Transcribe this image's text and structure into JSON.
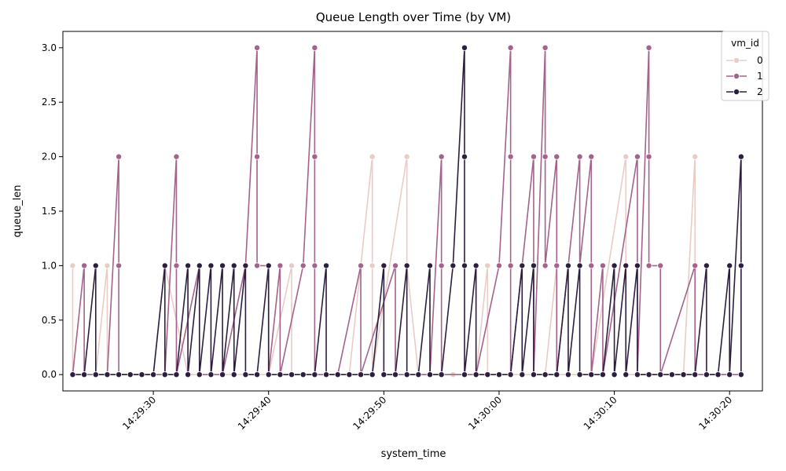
{
  "chart_data": {
    "type": "line",
    "title": "Queue Length over Time (by VM)",
    "xlabel": "system_time",
    "ylabel": "queue_len",
    "x_range": [
      "14:29:23",
      "14:30:22"
    ],
    "ylim": [
      -0.15,
      3.15
    ],
    "x_ticks": [
      "14:29:30",
      "14:29:40",
      "14:29:50",
      "14:30:00",
      "14:30:10",
      "14:30:20"
    ],
    "y_ticks": [
      "0.0",
      "0.5",
      "1.0",
      "1.5",
      "2.0",
      "2.5",
      "3.0"
    ],
    "grid": false,
    "legend": {
      "title": "vm_id",
      "placement": "top-right"
    },
    "series": [
      {
        "name": "0",
        "color": "#e8cdc6",
        "points": [
          [
            "14:29:23",
            1
          ],
          [
            "14:29:23",
            0
          ],
          [
            "14:29:25",
            0
          ],
          [
            "14:29:26",
            1
          ],
          [
            "14:29:26",
            0
          ],
          [
            "14:29:28",
            0
          ],
          [
            "14:29:30",
            0
          ],
          [
            "14:29:31",
            1
          ],
          [
            "14:29:33",
            0
          ],
          [
            "14:29:35",
            0
          ],
          [
            "14:29:38",
            0
          ],
          [
            "14:29:40",
            0
          ],
          [
            "14:29:42",
            1
          ],
          [
            "14:29:42",
            0
          ],
          [
            "14:29:45",
            0
          ],
          [
            "14:29:47",
            0
          ],
          [
            "14:29:49",
            2
          ],
          [
            "14:29:49",
            1
          ],
          [
            "14:29:49",
            0
          ],
          [
            "14:29:52",
            2
          ],
          [
            "14:29:52",
            1
          ],
          [
            "14:29:53",
            0
          ],
          [
            "14:29:56",
            0
          ],
          [
            "14:29:58",
            0
          ],
          [
            "14:29:59",
            1
          ],
          [
            "14:29:59",
            0
          ],
          [
            "14:30:02",
            0
          ],
          [
            "14:30:04",
            0
          ],
          [
            "14:30:05",
            1
          ],
          [
            "14:30:05",
            0
          ],
          [
            "14:30:08",
            0
          ],
          [
            "14:30:11",
            2
          ],
          [
            "14:30:11",
            1
          ],
          [
            "14:30:11",
            0
          ],
          [
            "14:30:14",
            0
          ],
          [
            "14:30:16",
            0
          ],
          [
            "14:30:17",
            2
          ],
          [
            "14:30:17",
            1
          ],
          [
            "14:30:17",
            0
          ],
          [
            "14:30:19",
            0
          ],
          [
            "14:30:21",
            0
          ]
        ]
      },
      {
        "name": "1",
        "color": "#a3638b",
        "points": [
          [
            "14:29:23",
            0
          ],
          [
            "14:29:24",
            1
          ],
          [
            "14:29:24",
            0
          ],
          [
            "14:29:26",
            0
          ],
          [
            "14:29:27",
            2
          ],
          [
            "14:29:27",
            1
          ],
          [
            "14:29:27",
            0
          ],
          [
            "14:29:29",
            0
          ],
          [
            "14:29:31",
            0
          ],
          [
            "14:29:32",
            2
          ],
          [
            "14:29:32",
            1
          ],
          [
            "14:29:32",
            0
          ],
          [
            "14:29:34",
            1
          ],
          [
            "14:29:34",
            0
          ],
          [
            "14:29:36",
            0
          ],
          [
            "14:29:38",
            1
          ],
          [
            "14:29:39",
            3
          ],
          [
            "14:29:39",
            2
          ],
          [
            "14:29:39",
            1
          ],
          [
            "14:29:40",
            1
          ],
          [
            "14:29:40",
            0
          ],
          [
            "14:29:41",
            1
          ],
          [
            "14:29:41",
            0
          ],
          [
            "14:29:43",
            1
          ],
          [
            "14:29:44",
            3
          ],
          [
            "14:29:44",
            2
          ],
          [
            "14:29:44",
            1
          ],
          [
            "14:29:44",
            0
          ],
          [
            "14:29:46",
            0
          ],
          [
            "14:29:48",
            1
          ],
          [
            "14:29:48",
            0
          ],
          [
            "14:29:51",
            1
          ],
          [
            "14:29:51",
            0
          ],
          [
            "14:29:54",
            0
          ],
          [
            "14:29:55",
            2
          ],
          [
            "14:29:55",
            1
          ],
          [
            "14:29:55",
            0
          ],
          [
            "14:29:58",
            0
          ],
          [
            "14:30:00",
            1
          ],
          [
            "14:30:01",
            3
          ],
          [
            "14:30:01",
            2
          ],
          [
            "14:30:01",
            1
          ],
          [
            "14:30:01",
            0
          ],
          [
            "14:30:03",
            2
          ],
          [
            "14:30:03",
            1
          ],
          [
            "14:30:03",
            0
          ],
          [
            "14:30:04",
            3
          ],
          [
            "14:30:04",
            2
          ],
          [
            "14:30:04",
            1
          ],
          [
            "14:30:05",
            2
          ],
          [
            "14:30:05",
            1
          ],
          [
            "14:30:05",
            0
          ],
          [
            "14:30:07",
            2
          ],
          [
            "14:30:07",
            1
          ],
          [
            "14:30:08",
            2
          ],
          [
            "14:30:08",
            1
          ],
          [
            "14:30:08",
            0
          ],
          [
            "14:30:09",
            1
          ],
          [
            "14:30:09",
            0
          ],
          [
            "14:30:12",
            2
          ],
          [
            "14:30:12",
            1
          ],
          [
            "14:30:12",
            0
          ],
          [
            "14:30:13",
            3
          ],
          [
            "14:30:13",
            2
          ],
          [
            "14:30:13",
            1
          ],
          [
            "14:30:14",
            1
          ],
          [
            "14:30:14",
            0
          ],
          [
            "14:30:17",
            1
          ],
          [
            "14:30:17",
            0
          ],
          [
            "14:30:19",
            0
          ],
          [
            "14:30:21",
            0
          ]
        ]
      },
      {
        "name": "2",
        "color": "#2c1e3d",
        "points": [
          [
            "14:29:23",
            0
          ],
          [
            "14:29:24",
            0
          ],
          [
            "14:29:25",
            1
          ],
          [
            "14:29:25",
            0
          ],
          [
            "14:29:26",
            0
          ],
          [
            "14:29:27",
            0
          ],
          [
            "14:29:28",
            0
          ],
          [
            "14:29:29",
            0
          ],
          [
            "14:29:30",
            0
          ],
          [
            "14:29:31",
            1
          ],
          [
            "14:29:31",
            0
          ],
          [
            "14:29:32",
            0
          ],
          [
            "14:29:33",
            1
          ],
          [
            "14:29:33",
            0
          ],
          [
            "14:29:34",
            1
          ],
          [
            "14:29:34",
            0
          ],
          [
            "14:29:35",
            1
          ],
          [
            "14:29:35",
            0
          ],
          [
            "14:29:36",
            1
          ],
          [
            "14:29:36",
            0
          ],
          [
            "14:29:37",
            1
          ],
          [
            "14:29:37",
            0
          ],
          [
            "14:29:38",
            1
          ],
          [
            "14:29:38",
            0
          ],
          [
            "14:29:39",
            0
          ],
          [
            "14:29:40",
            1
          ],
          [
            "14:29:40",
            0
          ],
          [
            "14:29:41",
            0
          ],
          [
            "14:29:42",
            0
          ],
          [
            "14:29:43",
            0
          ],
          [
            "14:29:44",
            0
          ],
          [
            "14:29:45",
            1
          ],
          [
            "14:29:45",
            0
          ],
          [
            "14:29:46",
            0
          ],
          [
            "14:29:47",
            0
          ],
          [
            "14:29:48",
            0
          ],
          [
            "14:29:49",
            0
          ],
          [
            "14:29:50",
            1
          ],
          [
            "14:29:50",
            0
          ],
          [
            "14:29:51",
            0
          ],
          [
            "14:29:52",
            1
          ],
          [
            "14:29:52",
            0
          ],
          [
            "14:29:53",
            0
          ],
          [
            "14:29:54",
            1
          ],
          [
            "14:29:54",
            0
          ],
          [
            "14:29:55",
            0
          ],
          [
            "14:29:56",
            1
          ],
          [
            "14:29:57",
            3
          ],
          [
            "14:29:57",
            2
          ],
          [
            "14:29:57",
            1
          ],
          [
            "14:29:57",
            0
          ],
          [
            "14:29:58",
            1
          ],
          [
            "14:29:58",
            0
          ],
          [
            "14:29:59",
            0
          ],
          [
            "14:30:00",
            0
          ],
          [
            "14:30:01",
            0
          ],
          [
            "14:30:02",
            1
          ],
          [
            "14:30:02",
            0
          ],
          [
            "14:30:03",
            1
          ],
          [
            "14:30:03",
            0
          ],
          [
            "14:30:04",
            0
          ],
          [
            "14:30:05",
            0
          ],
          [
            "14:30:06",
            1
          ],
          [
            "14:30:06",
            0
          ],
          [
            "14:30:07",
            1
          ],
          [
            "14:30:07",
            0
          ],
          [
            "14:30:08",
            0
          ],
          [
            "14:30:09",
            0
          ],
          [
            "14:30:10",
            1
          ],
          [
            "14:30:10",
            0
          ],
          [
            "14:30:11",
            1
          ],
          [
            "14:30:11",
            0
          ],
          [
            "14:30:12",
            1
          ],
          [
            "14:30:12",
            0
          ],
          [
            "14:30:13",
            0
          ],
          [
            "14:30:14",
            0
          ],
          [
            "14:30:15",
            0
          ],
          [
            "14:30:16",
            0
          ],
          [
            "14:30:17",
            0
          ],
          [
            "14:30:18",
            1
          ],
          [
            "14:30:18",
            0
          ],
          [
            "14:30:19",
            0
          ],
          [
            "14:30:20",
            1
          ],
          [
            "14:30:20",
            0
          ],
          [
            "14:30:21",
            2
          ],
          [
            "14:30:21",
            1
          ],
          [
            "14:30:21",
            0
          ]
        ]
      }
    ]
  }
}
